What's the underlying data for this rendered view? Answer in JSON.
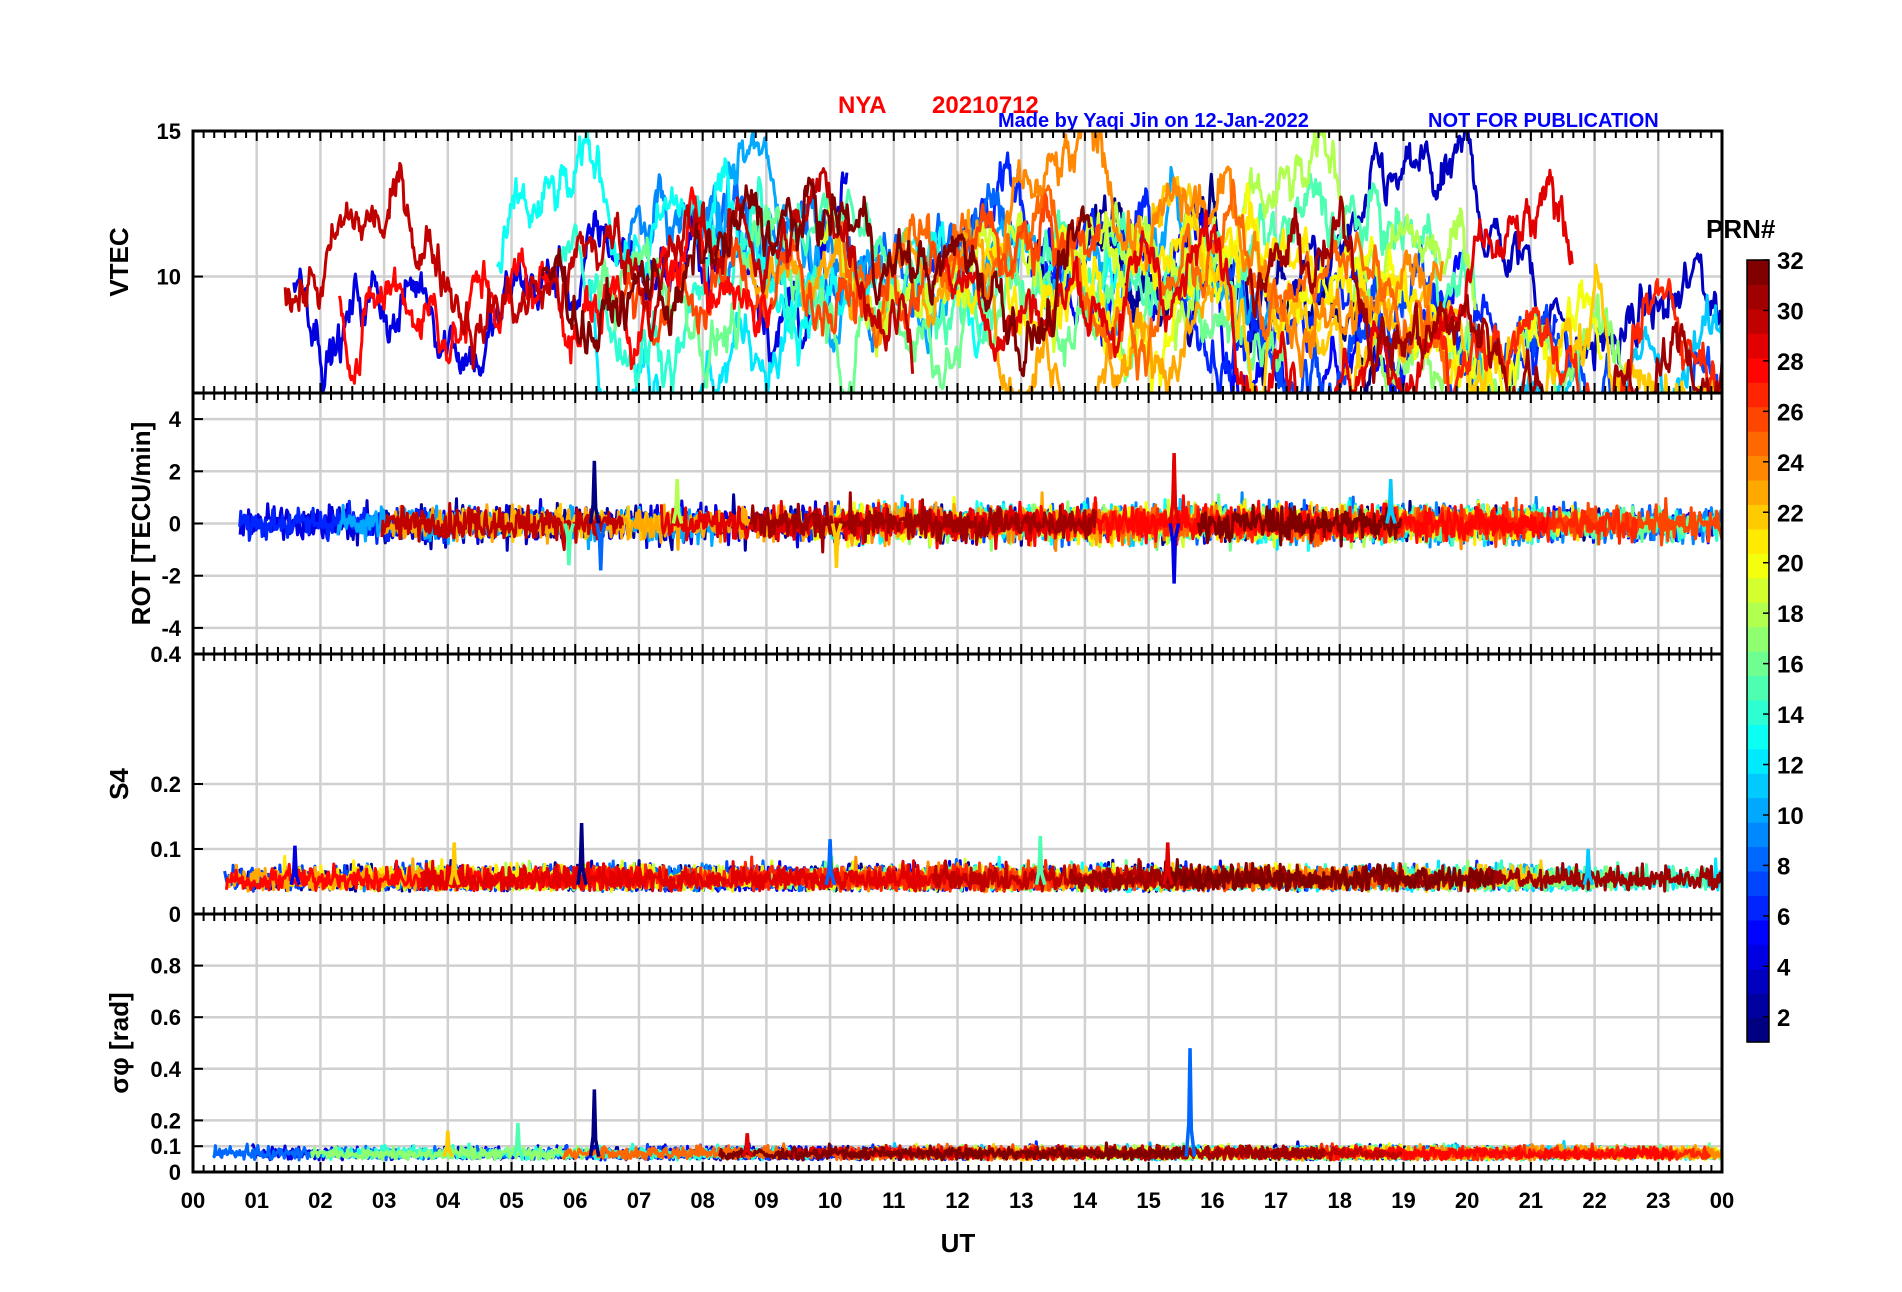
{
  "header": {
    "station": "NYA",
    "date": "20210712",
    "credit": "Made by Yaqi Jin on 12-Jan-2022",
    "notice": "NOT FOR PUBLICATION"
  },
  "colorbar": {
    "title": "PRN#",
    "ticks": [
      "2",
      "4",
      "6",
      "8",
      "10",
      "12",
      "14",
      "16",
      "18",
      "20",
      "22",
      "24",
      "26",
      "28",
      "30",
      "32"
    ],
    "range": [
      1,
      32
    ],
    "colormap": "jet"
  },
  "chart_data": [
    {
      "type": "line",
      "id": "vtec",
      "ylabel": "VTEC",
      "ylim": [
        6,
        15
      ],
      "yticks": [
        10,
        15
      ],
      "grid": true,
      "x_unit": "UT hour",
      "xlim": [
        0,
        24
      ],
      "series_count": 32,
      "approx_profile_x": [
        0,
        2,
        4,
        6,
        8,
        10,
        12,
        14,
        16,
        18,
        20,
        22,
        24
      ],
      "approx_profile_y": [
        8.5,
        9.8,
        10.3,
        9.8,
        10.5,
        11.0,
        10.3,
        10.5,
        10.2,
        10.0,
        8.8,
        8.0,
        8.2
      ]
    },
    {
      "type": "line",
      "id": "rot",
      "ylabel": "ROT [TECU/min]",
      "ylim": [
        -5,
        5
      ],
      "yticks": [
        -4,
        -2,
        0,
        2,
        4
      ],
      "grid": true,
      "x_unit": "UT hour",
      "xlim": [
        0,
        24
      ],
      "series_count": 32,
      "noise_amplitude": 0.3,
      "spikes": [
        {
          "x": 6.3,
          "y": 2.4
        },
        {
          "x": 6.4,
          "y": -1.8
        },
        {
          "x": 5.9,
          "y": -1.6
        },
        {
          "x": 10.1,
          "y": -1.7
        },
        {
          "x": 15.4,
          "y": 2.7
        },
        {
          "x": 15.4,
          "y": -2.3
        },
        {
          "x": 18.8,
          "y": 1.7
        },
        {
          "x": 7.6,
          "y": 1.7
        }
      ]
    },
    {
      "type": "line",
      "id": "s4",
      "ylabel": "S4",
      "ylim": [
        0,
        0.4
      ],
      "yticks": [
        0,
        0.1,
        0.2,
        0.4
      ],
      "grid": true,
      "x_unit": "UT hour",
      "xlim": [
        0,
        24
      ],
      "series_count": 32,
      "baseline": 0.045,
      "spikes": [
        {
          "x": 6.1,
          "y": 0.14
        },
        {
          "x": 10.0,
          "y": 0.115
        },
        {
          "x": 13.3,
          "y": 0.12
        },
        {
          "x": 4.1,
          "y": 0.11
        },
        {
          "x": 15.3,
          "y": 0.11
        },
        {
          "x": 1.6,
          "y": 0.105
        },
        {
          "x": 21.9,
          "y": 0.1
        }
      ]
    },
    {
      "type": "line",
      "id": "sigma_phi",
      "ylabel": "σφ [rad]",
      "ylim": [
        0,
        1
      ],
      "yticks": [
        0,
        0.1,
        0.2,
        0.4,
        0.6,
        0.8
      ],
      "grid": true,
      "x_unit": "UT hour",
      "xlim": [
        0,
        24
      ],
      "xlabel": "UT",
      "xticks": [
        "00",
        "01",
        "02",
        "03",
        "04",
        "05",
        "06",
        "07",
        "08",
        "09",
        "10",
        "11",
        "12",
        "13",
        "14",
        "15",
        "16",
        "17",
        "18",
        "19",
        "20",
        "21",
        "22",
        "23",
        "00"
      ],
      "series_count": 32,
      "baseline": 0.06,
      "spikes": [
        {
          "x": 6.3,
          "y": 0.32
        },
        {
          "x": 15.65,
          "y": 0.48
        },
        {
          "x": 5.1,
          "y": 0.19
        },
        {
          "x": 4.0,
          "y": 0.16
        },
        {
          "x": 8.7,
          "y": 0.15
        }
      ]
    }
  ]
}
